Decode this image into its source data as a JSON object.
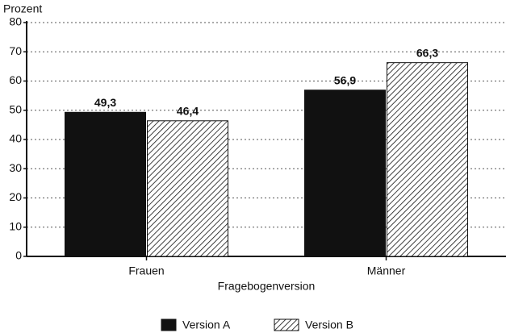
{
  "chart_data": {
    "type": "bar",
    "y_label": "Prozent",
    "x_label": "Fragebogenversion",
    "categories": [
      "Frauen",
      "Männer"
    ],
    "series": [
      {
        "name": "Version A",
        "color": "#111111",
        "pattern": "solid",
        "values": [
          49.3,
          56.9
        ],
        "value_labels": [
          "49,3",
          "56,9"
        ]
      },
      {
        "name": "Version B",
        "color": "#111111",
        "pattern": "hatch",
        "values": [
          46.4,
          66.3
        ],
        "value_labels": [
          "46,4",
          "66,3"
        ]
      }
    ],
    "ylim": [
      0,
      80
    ],
    "yticks": [
      0,
      10,
      20,
      30,
      40,
      50,
      60,
      70,
      80
    ],
    "grid": true,
    "legend": "bottom"
  }
}
